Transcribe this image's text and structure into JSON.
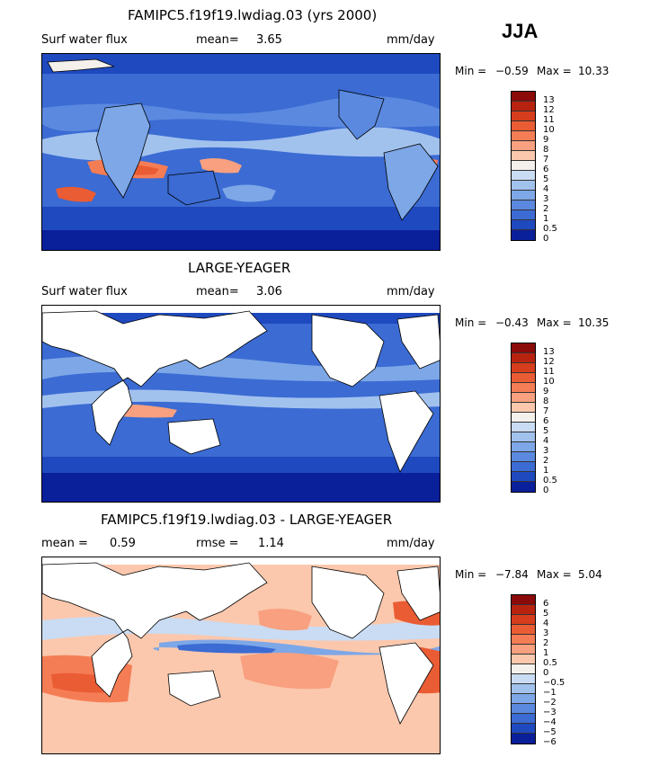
{
  "season": "JJA",
  "panels": [
    {
      "title": "FAMIPC5.f19f19.lwdiag.03 (yrs 2000)",
      "field_label": "Surf water flux",
      "stat_label": "mean=",
      "stat_value": "3.65",
      "stat2_label": "",
      "stat2_value": "",
      "units": "mm/day",
      "min_label": "Min =",
      "min_value": "−0.59",
      "max_label": "Max =",
      "max_value": "10.33"
    },
    {
      "title": "LARGE-YEAGER",
      "field_label": "Surf water flux",
      "stat_label": "mean=",
      "stat_value": "3.06",
      "stat2_label": "",
      "stat2_value": "",
      "units": "mm/day",
      "min_label": "Min =",
      "min_value": "−0.43",
      "max_label": "Max =",
      "max_value": "10.35"
    },
    {
      "title": "FAMIPC5.f19f19.lwdiag.03 - LARGE-YEAGER",
      "field_label": "",
      "stat_label": "mean =",
      "stat_value": "0.59",
      "stat2_label": "rmse =",
      "stat2_value": "1.14",
      "units": "mm/day",
      "min_label": "Min =",
      "min_value": "−7.84",
      "max_label": "Max =",
      "max_value": "5.04"
    }
  ],
  "chart_data": [
    {
      "type": "heatmap",
      "title": "FAMIPC5.f19f19.lwdiag.03 (yrs 2000)",
      "variable": "Surf water flux",
      "units": "mm/day",
      "mean": 3.65,
      "min": -0.59,
      "max": 10.33,
      "colorbar_levels": [
        "13",
        "12",
        "11",
        "10",
        "9",
        "8",
        "7",
        "6",
        "5",
        "4",
        "3",
        "2",
        "1",
        "0.5",
        "0"
      ],
      "colorbar_colors": [
        "#8b0a0a",
        "#b82310",
        "#d63d1c",
        "#ea5c34",
        "#f57d55",
        "#f8a07f",
        "#fbc8ad",
        "#f4f1ec",
        "#c9dcf3",
        "#a2c2ee",
        "#7da7e7",
        "#5a89df",
        "#3b6bd3",
        "#1f49bf",
        "#0a1f9a"
      ]
    },
    {
      "type": "heatmap",
      "title": "LARGE-YEAGER",
      "variable": "Surf water flux",
      "units": "mm/day",
      "mean": 3.06,
      "min": -0.43,
      "max": 10.35,
      "colorbar_levels": [
        "13",
        "12",
        "11",
        "10",
        "9",
        "8",
        "7",
        "6",
        "5",
        "4",
        "3",
        "2",
        "1",
        "0.5",
        "0"
      ],
      "colorbar_colors": [
        "#8b0a0a",
        "#b82310",
        "#d63d1c",
        "#ea5c34",
        "#f57d55",
        "#f8a07f",
        "#fbc8ad",
        "#f4f1ec",
        "#c9dcf3",
        "#a2c2ee",
        "#7da7e7",
        "#5a89df",
        "#3b6bd3",
        "#1f49bf",
        "#0a1f9a"
      ]
    },
    {
      "type": "heatmap",
      "title": "FAMIPC5.f19f19.lwdiag.03 - LARGE-YEAGER",
      "units": "mm/day",
      "mean": 0.59,
      "rmse": 1.14,
      "min": -7.84,
      "max": 5.04,
      "colorbar_levels": [
        "6",
        "5",
        "4",
        "3",
        "2",
        "1",
        "0.5",
        "0",
        "−0.5",
        "−1",
        "−2",
        "−3",
        "−4",
        "−5",
        "−6"
      ],
      "colorbar_colors": [
        "#8b0a0a",
        "#b82310",
        "#d63d1c",
        "#ea5c34",
        "#f57d55",
        "#f8a07f",
        "#fbc8ad",
        "#f4f1ec",
        "#c9dcf3",
        "#a2c2ee",
        "#7da7e7",
        "#5a89df",
        "#3b6bd3",
        "#1f49bf",
        "#0a1f9a"
      ]
    }
  ]
}
